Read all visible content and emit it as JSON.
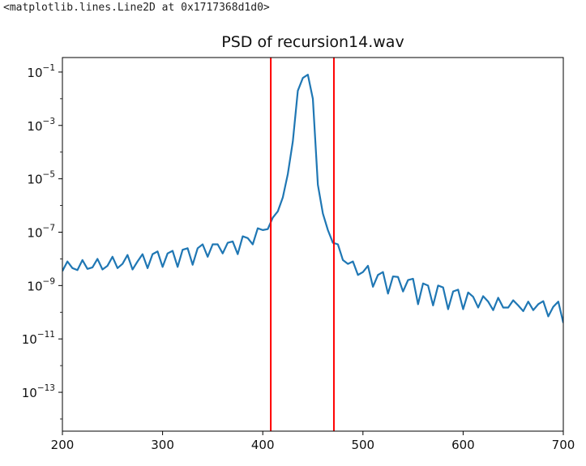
{
  "output_text": "<matplotlib.lines.Line2D at 0x1717368d1d0>",
  "chart_data": {
    "type": "line",
    "title": "PSD of recursion14.wav",
    "xlabel": "",
    "ylabel": "",
    "xlim": [
      200,
      700
    ],
    "ylim": [
      3.5e-15,
      0.35
    ],
    "y_scale": "log",
    "grid": false,
    "x_ticks": [
      "200",
      "300",
      "400",
      "500",
      "600",
      "700"
    ],
    "y_ticks": [
      {
        "base": "10",
        "exp": "−1",
        "value": 0.1
      },
      {
        "base": "10",
        "exp": "−3",
        "value": 0.001
      },
      {
        "base": "10",
        "exp": "−5",
        "value": 1e-05
      },
      {
        "base": "10",
        "exp": "−7",
        "value": 1e-07
      },
      {
        "base": "10",
        "exp": "−9",
        "value": 1e-09
      },
      {
        "base": "10",
        "exp": "−11",
        "value": 1e-11
      },
      {
        "base": "10",
        "exp": "−13",
        "value": 1e-13
      }
    ],
    "series": [
      {
        "color": "#1f77b4",
        "x": [
          200,
          205,
          210,
          215,
          220,
          225,
          230,
          235,
          240,
          245,
          250,
          255,
          260,
          265,
          270,
          275,
          280,
          285,
          290,
          295,
          300,
          305,
          310,
          315,
          320,
          325,
          330,
          335,
          340,
          345,
          350,
          355,
          360,
          365,
          370,
          375,
          380,
          385,
          390,
          395,
          400,
          405,
          410,
          415,
          420,
          425,
          430,
          435,
          440,
          445,
          450,
          455,
          460,
          465,
          470,
          475,
          480,
          485,
          490,
          495,
          500,
          505,
          510,
          515,
          520,
          525,
          530,
          535,
          540,
          545,
          550,
          555,
          560,
          565,
          570,
          575,
          580,
          585,
          590,
          595,
          600,
          605,
          610,
          615,
          620,
          625,
          630,
          635,
          640,
          645,
          650,
          655,
          660,
          665,
          670,
          675,
          680,
          685,
          690,
          695,
          700
        ],
        "y": [
          3.5e-09,
          8e-09,
          4.5e-09,
          3.8e-09,
          9e-09,
          4.2e-09,
          4.8e-09,
          1e-08,
          4e-09,
          5.5e-09,
          1.2e-08,
          4.5e-09,
          6.5e-09,
          1.4e-08,
          4e-09,
          8e-09,
          1.5e-08,
          4.5e-09,
          1.5e-08,
          1.9e-08,
          5e-09,
          1.6e-08,
          2e-08,
          5e-09,
          2.2e-08,
          2.5e-08,
          6e-09,
          2.5e-08,
          3.5e-08,
          1.2e-08,
          3.5e-08,
          3.5e-08,
          1.6e-08,
          4e-08,
          4.5e-08,
          1.5e-08,
          7e-08,
          6e-08,
          3.5e-08,
          1.4e-07,
          1.2e-07,
          1.3e-07,
          3.5e-07,
          6e-07,
          2e-06,
          1.5e-05,
          0.00025,
          0.02,
          0.06,
          0.08,
          0.01,
          6e-06,
          5e-07,
          1.2e-07,
          4e-08,
          3.5e-08,
          9e-09,
          6.5e-09,
          8e-09,
          2.5e-09,
          3.2e-09,
          5.5e-09,
          9e-10,
          2.5e-09,
          3.2e-09,
          5e-10,
          2.2e-09,
          2.1e-09,
          6e-10,
          1.6e-09,
          1.8e-09,
          2e-10,
          1.2e-09,
          1e-09,
          1.8e-10,
          1e-09,
          8.5e-10,
          1.3e-10,
          6e-10,
          7e-10,
          1.3e-10,
          5.5e-10,
          3.8e-10,
          1.5e-10,
          4e-10,
          2.5e-10,
          1.2e-10,
          3.5e-10,
          1.5e-10,
          1.5e-10,
          2.8e-10,
          1.8e-10,
          1.1e-10,
          2.5e-10,
          1.2e-10,
          2e-10,
          2.6e-10,
          7e-11,
          1.6e-10,
          2.5e-10,
          4e-11
        ]
      },
      {
        "color": "#ff0000",
        "vline_x": 408
      },
      {
        "color": "#ff0000",
        "vline_x": 471
      }
    ]
  }
}
